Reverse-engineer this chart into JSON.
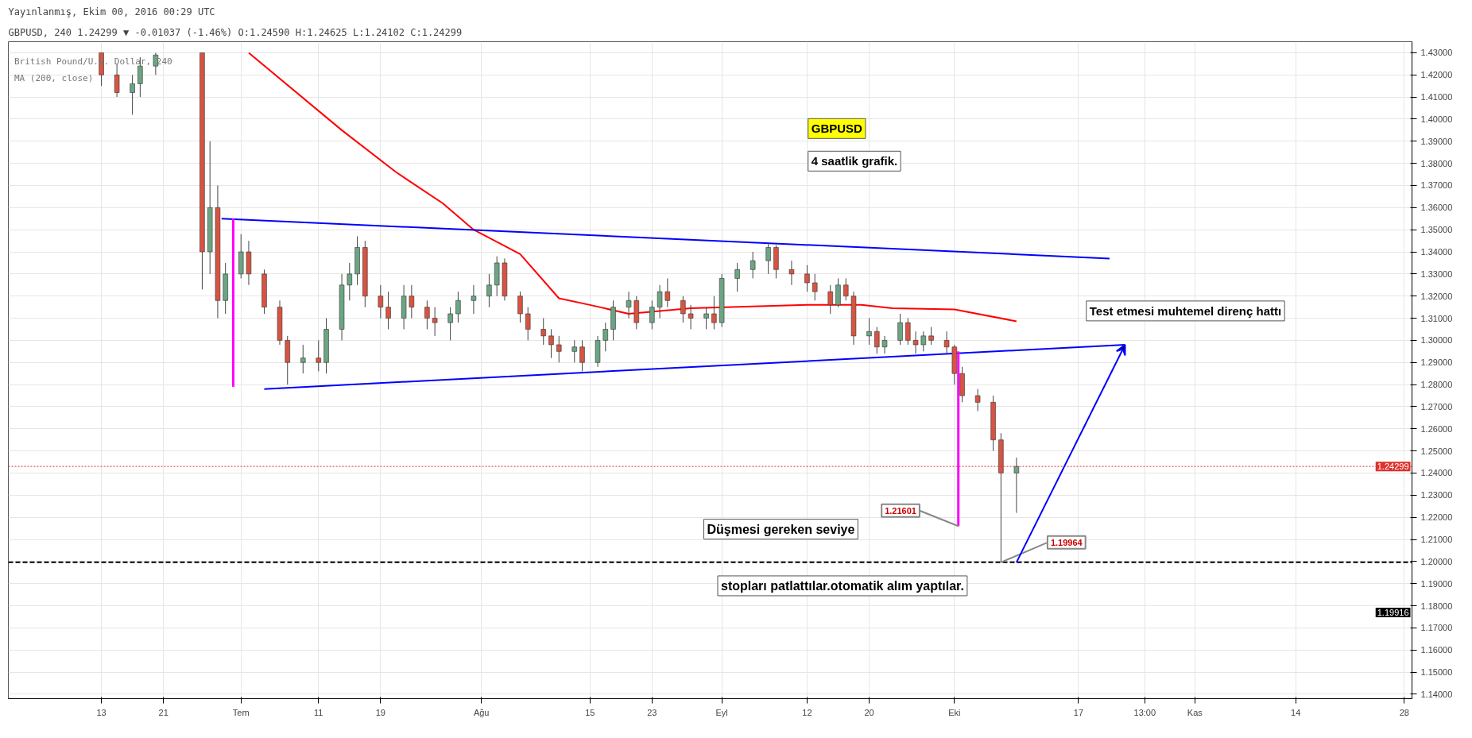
{
  "chart_data": {
    "type": "candlestick",
    "title": "Yayınlanmış, Ekim 00, 2016 00:29 UTC",
    "subtitle": "GBPUSD, 240 1.24299 ▼ -0.01037 (-1.46%) O:1.24590 H:1.24625 L:1.24102 C:1.24299",
    "x": [
      "2016-06-13",
      "2016-06-15",
      "2016-06-17",
      "2016-06-18",
      "2016-06-20",
      "2016-06-26",
      "2016-06-27",
      "2016-06-28",
      "2016-06-29",
      "2016-07-01",
      "2016-07-02",
      "2016-07-04",
      "2016-07-06",
      "2016-07-07",
      "2016-07-09",
      "2016-07-11",
      "2016-07-12",
      "2016-07-14",
      "2016-07-15",
      "2016-07-16",
      "2016-07-17",
      "2016-07-19",
      "2016-07-20",
      "2016-07-22",
      "2016-07-23",
      "2016-07-25",
      "2016-07-26",
      "2016-07-28",
      "2016-07-29",
      "2016-07-31",
      "2016-08-02",
      "2016-08-03",
      "2016-08-04",
      "2016-08-06",
      "2016-08-07",
      "2016-08-09",
      "2016-08-10",
      "2016-08-11",
      "2016-08-13",
      "2016-08-14",
      "2016-08-16",
      "2016-08-17",
      "2016-08-18",
      "2016-08-20",
      "2016-08-21",
      "2016-08-23",
      "2016-08-24",
      "2016-08-25",
      "2016-08-27",
      "2016-08-28",
      "2016-08-30",
      "2016-08-31",
      "2016-09-01",
      "2016-09-03",
      "2016-09-05",
      "2016-09-07",
      "2016-09-08",
      "2016-09-10",
      "2016-09-12",
      "2016-09-13",
      "2016-09-15",
      "2016-09-16",
      "2016-09-17",
      "2016-09-18",
      "2016-09-20",
      "2016-09-21",
      "2016-09-22",
      "2016-09-24",
      "2016-09-25",
      "2016-09-26",
      "2016-09-27",
      "2016-09-28",
      "2016-09-30",
      "2016-10-01",
      "2016-10-02",
      "2016-10-04",
      "2016-10-06",
      "2016-10-07",
      "2016-10-09"
    ],
    "ohlc": [
      [
        1.43,
        1.43,
        1.415,
        1.42
      ],
      [
        1.42,
        1.425,
        1.41,
        1.412
      ],
      [
        1.412,
        1.42,
        1.402,
        1.416
      ],
      [
        1.416,
        1.428,
        1.41,
        1.424
      ],
      [
        1.424,
        1.43,
        1.42,
        1.429
      ],
      [
        1.43,
        1.43,
        1.323,
        1.34
      ],
      [
        1.34,
        1.39,
        1.33,
        1.36
      ],
      [
        1.36,
        1.37,
        1.31,
        1.318
      ],
      [
        1.318,
        1.335,
        1.312,
        1.33
      ],
      [
        1.33,
        1.348,
        1.328,
        1.34
      ],
      [
        1.34,
        1.345,
        1.325,
        1.33
      ],
      [
        1.33,
        1.332,
        1.312,
        1.315
      ],
      [
        1.315,
        1.318,
        1.298,
        1.3
      ],
      [
        1.3,
        1.302,
        1.28,
        1.29
      ],
      [
        1.29,
        1.298,
        1.285,
        1.292
      ],
      [
        1.292,
        1.3,
        1.286,
        1.29
      ],
      [
        1.29,
        1.31,
        1.285,
        1.305
      ],
      [
        1.305,
        1.33,
        1.3,
        1.325
      ],
      [
        1.325,
        1.335,
        1.318,
        1.33
      ],
      [
        1.33,
        1.347,
        1.325,
        1.342
      ],
      [
        1.342,
        1.345,
        1.315,
        1.32
      ],
      [
        1.32,
        1.325,
        1.31,
        1.315
      ],
      [
        1.315,
        1.322,
        1.305,
        1.31
      ],
      [
        1.31,
        1.325,
        1.305,
        1.32
      ],
      [
        1.32,
        1.325,
        1.31,
        1.315
      ],
      [
        1.315,
        1.318,
        1.305,
        1.31
      ],
      [
        1.31,
        1.315,
        1.302,
        1.308
      ],
      [
        1.308,
        1.315,
        1.3,
        1.312
      ],
      [
        1.312,
        1.322,
        1.308,
        1.318
      ],
      [
        1.318,
        1.325,
        1.312,
        1.32
      ],
      [
        1.32,
        1.33,
        1.315,
        1.325
      ],
      [
        1.325,
        1.338,
        1.32,
        1.335
      ],
      [
        1.335,
        1.337,
        1.318,
        1.32
      ],
      [
        1.32,
        1.322,
        1.308,
        1.312
      ],
      [
        1.312,
        1.315,
        1.3,
        1.305
      ],
      [
        1.305,
        1.31,
        1.298,
        1.302
      ],
      [
        1.302,
        1.305,
        1.292,
        1.298
      ],
      [
        1.298,
        1.302,
        1.29,
        1.295
      ],
      [
        1.295,
        1.3,
        1.29,
        1.297
      ],
      [
        1.297,
        1.3,
        1.286,
        1.29
      ],
      [
        1.29,
        1.302,
        1.288,
        1.3
      ],
      [
        1.3,
        1.308,
        1.295,
        1.305
      ],
      [
        1.305,
        1.318,
        1.3,
        1.315
      ],
      [
        1.315,
        1.322,
        1.31,
        1.318
      ],
      [
        1.318,
        1.32,
        1.305,
        1.308
      ],
      [
        1.308,
        1.318,
        1.305,
        1.315
      ],
      [
        1.315,
        1.325,
        1.31,
        1.322
      ],
      [
        1.322,
        1.328,
        1.315,
        1.318
      ],
      [
        1.318,
        1.32,
        1.308,
        1.312
      ],
      [
        1.312,
        1.316,
        1.305,
        1.31
      ],
      [
        1.31,
        1.315,
        1.305,
        1.312
      ],
      [
        1.312,
        1.32,
        1.305,
        1.308
      ],
      [
        1.308,
        1.33,
        1.306,
        1.328
      ],
      [
        1.328,
        1.335,
        1.322,
        1.332
      ],
      [
        1.332,
        1.34,
        1.328,
        1.336
      ],
      [
        1.336,
        1.344,
        1.33,
        1.342
      ],
      [
        1.342,
        1.343,
        1.328,
        1.332
      ],
      [
        1.332,
        1.336,
        1.325,
        1.33
      ],
      [
        1.33,
        1.334,
        1.322,
        1.326
      ],
      [
        1.326,
        1.33,
        1.318,
        1.322
      ],
      [
        1.322,
        1.325,
        1.312,
        1.316
      ],
      [
        1.316,
        1.328,
        1.315,
        1.325
      ],
      [
        1.325,
        1.328,
        1.318,
        1.32
      ],
      [
        1.32,
        1.322,
        1.298,
        1.302
      ],
      [
        1.302,
        1.31,
        1.298,
        1.304
      ],
      [
        1.304,
        1.306,
        1.294,
        1.297
      ],
      [
        1.297,
        1.302,
        1.294,
        1.3
      ],
      [
        1.3,
        1.312,
        1.298,
        1.308
      ],
      [
        1.308,
        1.31,
        1.298,
        1.3
      ],
      [
        1.3,
        1.304,
        1.294,
        1.298
      ],
      [
        1.298,
        1.304,
        1.295,
        1.302
      ],
      [
        1.302,
        1.306,
        1.298,
        1.3
      ],
      [
        1.3,
        1.304,
        1.294,
        1.297
      ],
      [
        1.297,
        1.298,
        1.28,
        1.285
      ],
      [
        1.285,
        1.288,
        1.272,
        1.275
      ],
      [
        1.275,
        1.278,
        1.268,
        1.272
      ],
      [
        1.272,
        1.275,
        1.25,
        1.255
      ],
      [
        1.255,
        1.258,
        1.19964,
        1.24
      ],
      [
        1.24,
        1.247,
        1.222,
        1.243
      ]
    ],
    "colors": [
      "#d75442",
      "#d75442",
      "#6ba583",
      "#6ba583",
      "#6ba583",
      "#d75442",
      "#6ba583",
      "#d75442",
      "#6ba583",
      "#6ba583",
      "#d75442",
      "#d75442",
      "#d75442",
      "#d75442",
      "#6ba583",
      "#d75442",
      "#6ba583",
      "#6ba583",
      "#6ba583",
      "#6ba583",
      "#d75442",
      "#d75442",
      "#d75442",
      "#6ba583",
      "#d75442",
      "#d75442",
      "#d75442",
      "#6ba583",
      "#6ba583",
      "#6ba583",
      "#6ba583",
      "#6ba583",
      "#d75442",
      "#d75442",
      "#d75442",
      "#d75442",
      "#d75442",
      "#d75442",
      "#6ba583",
      "#d75442",
      "#6ba583",
      "#6ba583",
      "#6ba583",
      "#6ba583",
      "#d75442",
      "#6ba583",
      "#6ba583",
      "#d75442",
      "#d75442",
      "#d75442",
      "#6ba583",
      "#d75442",
      "#6ba583",
      "#6ba583",
      "#6ba583",
      "#6ba583",
      "#d75442",
      "#d75442",
      "#d75442",
      "#d75442",
      "#d75442",
      "#6ba583",
      "#d75442",
      "#d75442",
      "#6ba583",
      "#d75442",
      "#6ba583",
      "#6ba583",
      "#d75442",
      "#d75442",
      "#6ba583",
      "#d75442",
      "#d75442",
      "#d75442",
      "#d75442",
      "#d75442",
      "#d75442",
      "#d75442",
      "#6ba583"
    ],
    "series": [
      {
        "type": "line",
        "color": "#ff0000",
        "x": [
          "2016-07-02",
          "2016-07-14",
          "2016-07-21",
          "2016-07-27",
          "2016-07-31",
          "2016-08-06",
          "2016-08-11",
          "2016-08-15",
          "2016-08-20",
          "2016-08-28",
          "2016-09-12",
          "2016-09-19",
          "2016-09-23",
          "2016-10-01",
          "2016-10-09"
        ],
        "values": [
          1.43,
          1.395,
          1.376,
          1.362,
          1.35,
          1.339,
          1.319,
          1.316,
          1.312,
          1.3145,
          1.316,
          1.316,
          1.3145,
          1.314,
          1.3086
        ]
      },
      {
        "type": "line",
        "color": "#0000ff",
        "x": [
          "2016-06-28T12:00",
          "2016-10-21"
        ],
        "values": [
          1.355,
          1.337
        ]
      },
      {
        "type": "line",
        "color": "#0000ff",
        "x": [
          "2016-07-04",
          "2016-10-23"
        ],
        "values": [
          1.278,
          1.298
        ]
      },
      {
        "type": "line",
        "color": "#ff00ff",
        "x": [
          "2016-06-30",
          "2016-06-30"
        ],
        "values": [
          1.355,
          1.279
        ]
      },
      {
        "type": "line",
        "color": "#ff00ff",
        "x": [
          "2016-10-01T12:00",
          "2016-10-01T12:00"
        ],
        "values": [
          1.295,
          1.216
        ]
      }
    ],
    "xlim": [
      "2016-06-01",
      "2016-11-29"
    ],
    "xticks": [
      {
        "value": "2016-06-13",
        "label": "13"
      },
      {
        "value": "2016-06-21",
        "label": "21"
      },
      {
        "value": "2016-07-01",
        "label": "Tem"
      },
      {
        "value": "2016-07-11",
        "label": "11"
      },
      {
        "value": "2016-07-19",
        "label": "19"
      },
      {
        "value": "2016-08-01",
        "label": "Ağu"
      },
      {
        "value": "2016-08-15",
        "label": "15"
      },
      {
        "value": "2016-08-23",
        "label": "23"
      },
      {
        "value": "2016-09-01",
        "label": "Eyl"
      },
      {
        "value": "2016-09-12",
        "label": "12"
      },
      {
        "value": "2016-09-20",
        "label": "20"
      },
      {
        "value": "2016-10-01",
        "label": "Eki"
      },
      {
        "value": "2016-10-17",
        "label": "17"
      },
      {
        "value": "2016-10-25T13:00",
        "label": "13:00"
      },
      {
        "value": "2016-11-01",
        "label": "Kas"
      },
      {
        "value": "2016-11-14",
        "label": "14"
      },
      {
        "value": "2016-11-28",
        "label": "28"
      }
    ],
    "ylim": [
      1.138,
      1.435
    ],
    "yticks": [
      {
        "value": 1.14,
        "label": "1.14000"
      },
      {
        "value": 1.15,
        "label": "1.15000"
      },
      {
        "value": 1.16,
        "label": "1.16000"
      },
      {
        "value": 1.17,
        "label": "1.17000"
      },
      {
        "value": 1.18,
        "label": "1.18000"
      },
      {
        "value": 1.19,
        "label": "1.19000"
      },
      {
        "value": 1.2,
        "label": "1.20000"
      },
      {
        "value": 1.21,
        "label": "1.21000"
      },
      {
        "value": 1.22,
        "label": "1.22000"
      },
      {
        "value": 1.23,
        "label": "1.23000"
      },
      {
        "value": 1.24,
        "label": "1.24000"
      },
      {
        "value": 1.25,
        "label": "1.25000"
      },
      {
        "value": 1.26,
        "label": "1.26000"
      },
      {
        "value": 1.27,
        "label": "1.27000"
      },
      {
        "value": 1.28,
        "label": "1.28000"
      },
      {
        "value": 1.29,
        "label": "1.29000"
      },
      {
        "value": 1.3,
        "label": "1.30000"
      },
      {
        "value": 1.31,
        "label": "1.31000"
      },
      {
        "value": 1.32,
        "label": "1.32000"
      },
      {
        "value": 1.33,
        "label": "1.33000"
      },
      {
        "value": 1.34,
        "label": "1.34000"
      },
      {
        "value": 1.35,
        "label": "1.35000"
      },
      {
        "value": 1.36,
        "label": "1.36000"
      },
      {
        "value": 1.37,
        "label": "1.37000"
      },
      {
        "value": 1.38,
        "label": "1.38000"
      },
      {
        "value": 1.39,
        "label": "1.39000"
      },
      {
        "value": 1.4,
        "label": "1.40000"
      },
      {
        "value": 1.41,
        "label": "1.41000"
      },
      {
        "value": 1.42,
        "label": "1.42000"
      },
      {
        "value": 1.43,
        "label": "1.43000"
      }
    ],
    "ref_lines": [
      {
        "axis": "y",
        "value": 1.19964,
        "color": "#000000",
        "line_style": "dashed"
      },
      {
        "axis": "y",
        "value": 1.24299,
        "label": "1.24299",
        "color": "#e0312c",
        "line_style": "dotted"
      }
    ],
    "annotations": [
      "British Pound/U.S. Dollar, 240",
      "MA (200, close)",
      "GBPUSD",
      "4 saatlik grafik.",
      "Test etmesi muhtemel direnç hattı",
      "Düşmesi gereken seviye",
      "stopları patlattılar.otomatik alım yaptılar.",
      {
        "text": "1.21601",
        "x": "2016-10-01T12:00",
        "y": 1.21601
      },
      {
        "text": "1.19964",
        "x": "2016-10-07",
        "y": 1.19964
      },
      "1.19916"
    ],
    "grid": true
  }
}
